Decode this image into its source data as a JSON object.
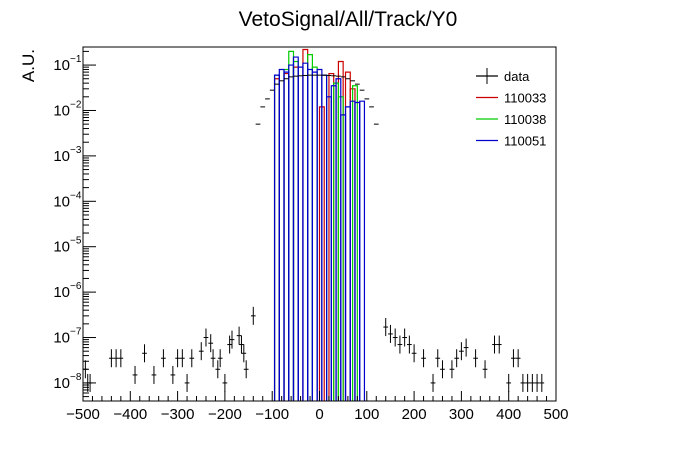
{
  "chart_data": {
    "type": "histogram",
    "title": "VetoSignal/All/Track/Y0",
    "xlabel": "",
    "ylabel": "A.U.",
    "xlim": [
      -500,
      500
    ],
    "ylim": [
      4e-09,
      0.25
    ],
    "log_y": true,
    "x_ticks": [
      -500,
      -400,
      -300,
      -200,
      -100,
      0,
      100,
      200,
      300,
      400,
      500
    ],
    "x_tick_labels": [
      "−500",
      "−400",
      "−300",
      "−200",
      "−100",
      "0",
      "100",
      "200",
      "300",
      "400",
      "500"
    ],
    "y_ticks": [
      1e-08,
      1e-07,
      1e-06,
      1e-05,
      0.0001,
      0.001,
      0.01,
      0.1
    ],
    "y_tick_labels": [
      {
        "base": "10",
        "exp": "−8"
      },
      {
        "base": "10",
        "exp": "−7"
      },
      {
        "base": "10",
        "exp": "−6"
      },
      {
        "base": "10",
        "exp": "−5"
      },
      {
        "base": "10",
        "exp": "−4"
      },
      {
        "base": "10",
        "exp": "−3"
      },
      {
        "base": "10",
        "exp": "−2"
      },
      {
        "base": "10",
        "exp": "−1"
      }
    ],
    "legend_position": "top-right",
    "legend": [
      {
        "name": "data",
        "color": "#000000"
      },
      {
        "name": "110033",
        "color": "#cc0000"
      },
      {
        "name": "110038",
        "color": "#00cc00"
      },
      {
        "name": "110051",
        "color": "#0000cc"
      }
    ],
    "data_points": {
      "name": "data",
      "bin_width": 10,
      "x": [
        -495,
        -490,
        -485,
        -440,
        -430,
        -420,
        -390,
        -370,
        -350,
        -330,
        -310,
        -300,
        -290,
        -280,
        -270,
        -250,
        -240,
        -230,
        -225,
        -215,
        -210,
        -200,
        -190,
        -185,
        -170,
        -165,
        -160,
        -155,
        -140,
        -130,
        -120,
        -110,
        -100,
        -90,
        -80,
        -70,
        -60,
        -50,
        -40,
        -30,
        -20,
        -10,
        0,
        10,
        20,
        30,
        40,
        50,
        60,
        70,
        80,
        90,
        100,
        110,
        120,
        140,
        150,
        160,
        170,
        180,
        190,
        200,
        220,
        240,
        250,
        260,
        280,
        290,
        300,
        310,
        330,
        350,
        370,
        380,
        400,
        410,
        420,
        430,
        440,
        450,
        460,
        470
      ],
      "y": [
        2e-08,
        1e-08,
        1e-08,
        3.5e-08,
        3.5e-08,
        3.5e-08,
        1.5e-08,
        4.5e-08,
        1.5e-08,
        3.5e-08,
        1.5e-08,
        3.5e-08,
        3.5e-08,
        1e-08,
        3.5e-08,
        5e-08,
        1e-07,
        7.5e-08,
        3.5e-08,
        2e-08,
        3.5e-08,
        1e-08,
        7e-08,
        9e-08,
        1.1e-07,
        7e-08,
        4.5e-08,
        2e-08,
        3e-07,
        0.005,
        0.012,
        0.018,
        0.028,
        0.038,
        0.045,
        0.05,
        0.055,
        0.057,
        0.058,
        0.059,
        0.06,
        0.06,
        0.06,
        0.06,
        0.059,
        0.058,
        0.057,
        0.055,
        0.05,
        0.045,
        0.038,
        0.028,
        0.018,
        0.012,
        0.005,
        1.7e-07,
        1.2e-07,
        1e-07,
        7e-08,
        1e-07,
        7e-08,
        4.5e-08,
        3.5e-08,
        1e-08,
        3.5e-08,
        2e-08,
        2e-08,
        3.5e-08,
        5e-08,
        6e-08,
        3.5e-08,
        2e-08,
        7e-08,
        7e-08,
        1e-08,
        3.5e-08,
        3.5e-08,
        1e-08,
        1e-08,
        1e-08,
        1e-08,
        1e-08
      ]
    },
    "series": [
      {
        "name": "110033",
        "color": "#cc0000",
        "bins": [
          {
            "x0": -95,
            "x1": -85,
            "y": 0.05
          },
          {
            "x0": -75,
            "x1": -65,
            "y": 0.065
          },
          {
            "x0": -55,
            "x1": -45,
            "y": 0.09
          },
          {
            "x0": -35,
            "x1": -25,
            "y": 0.22
          },
          {
            "x0": 0,
            "x1": 10,
            "y": 0.012
          },
          {
            "x0": 20,
            "x1": 30,
            "y": 0.065
          },
          {
            "x0": 40,
            "x1": 50,
            "y": 0.12
          },
          {
            "x0": 55,
            "x1": 65,
            "y": 0.07
          },
          {
            "x0": 65,
            "x1": 75,
            "y": 0.03
          }
        ]
      },
      {
        "name": "110038",
        "color": "#00cc00",
        "bins": [
          {
            "x0": -95,
            "x1": -85,
            "y": 0.06
          },
          {
            "x0": -75,
            "x1": -65,
            "y": 0.08
          },
          {
            "x0": -65,
            "x1": -55,
            "y": 0.2
          },
          {
            "x0": -55,
            "x1": -45,
            "y": 0.12
          },
          {
            "x0": -25,
            "x1": -15,
            "y": 0.17
          },
          {
            "x0": -15,
            "x1": -5,
            "y": 0.09
          },
          {
            "x0": 5,
            "x1": 15,
            "y": 0.06
          },
          {
            "x0": 30,
            "x1": 40,
            "y": 0.04
          },
          {
            "x0": 40,
            "x1": 50,
            "y": 0.02
          },
          {
            "x0": 70,
            "x1": 80,
            "y": 0.035
          }
        ]
      },
      {
        "name": "110051",
        "color": "#0000cc",
        "bins": [
          {
            "x0": -95,
            "x1": -85,
            "y": 0.06
          },
          {
            "x0": -85,
            "x1": -75,
            "y": 0.08
          },
          {
            "x0": -75,
            "x1": -65,
            "y": 0.07
          },
          {
            "x0": -65,
            "x1": -55,
            "y": 0.1
          },
          {
            "x0": -55,
            "x1": -45,
            "y": 0.15
          },
          {
            "x0": -45,
            "x1": -35,
            "y": 0.09
          },
          {
            "x0": -35,
            "x1": -25,
            "y": 0.11
          },
          {
            "x0": -25,
            "x1": -15,
            "y": 0.08
          },
          {
            "x0": -15,
            "x1": -5,
            "y": 0.07
          },
          {
            "x0": -5,
            "x1": 5,
            "y": 0.08
          },
          {
            "x0": 5,
            "x1": 15,
            "y": 0.06
          },
          {
            "x0": 15,
            "x1": 25,
            "y": 0.02
          },
          {
            "x0": 25,
            "x1": 35,
            "y": 0.035
          },
          {
            "x0": 35,
            "x1": 45,
            "y": 0.05
          },
          {
            "x0": 45,
            "x1": 55,
            "y": 0.008
          },
          {
            "x0": 55,
            "x1": 65,
            "y": 0.012
          },
          {
            "x0": 65,
            "x1": 75,
            "y": 0.016
          },
          {
            "x0": 75,
            "x1": 85,
            "y": 0.015
          },
          {
            "x0": 85,
            "x1": 95,
            "y": 0.016
          }
        ]
      }
    ]
  }
}
